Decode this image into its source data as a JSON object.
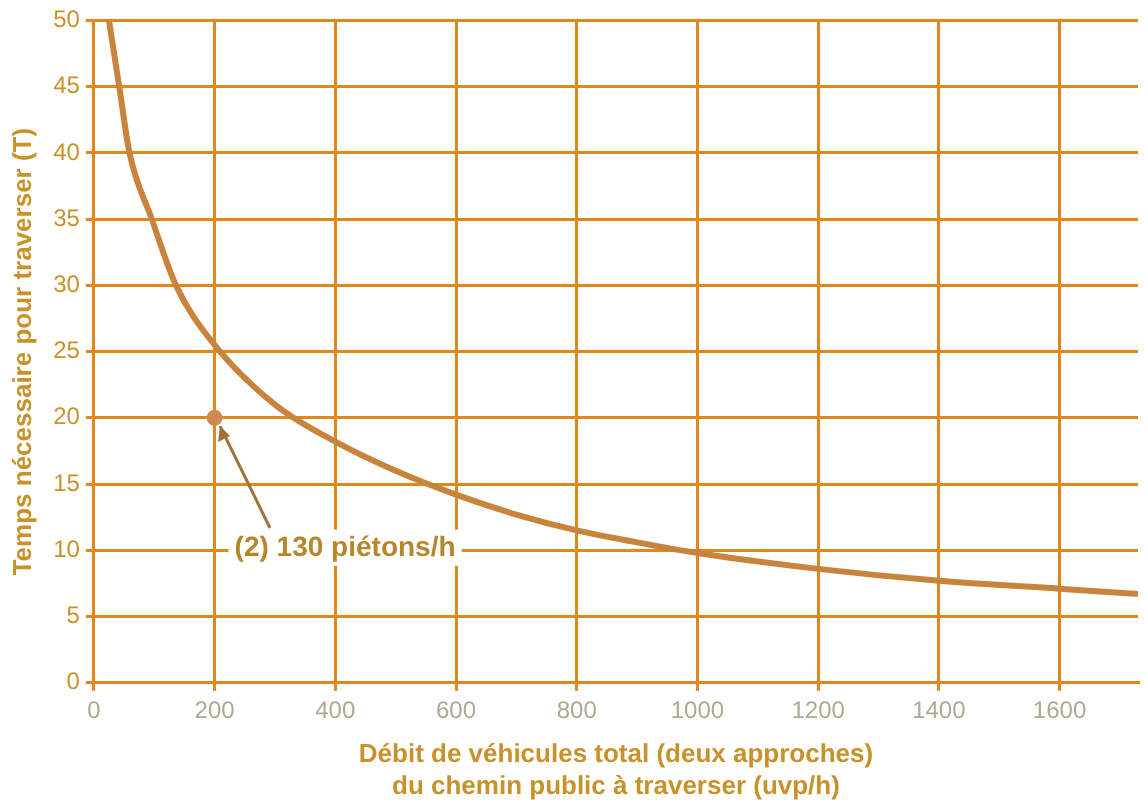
{
  "chart_data": {
    "type": "line",
    "xlabel": "Débit de véhicules total (deux approches)\ndu chemin public à traverser (uvp/h)",
    "ylabel": "Temps nécessaire pour traverser (T)",
    "xlim": [
      0,
      1730
    ],
    "xticks": [
      0,
      200,
      400,
      600,
      800,
      1000,
      1200,
      1400,
      1600
    ],
    "ylim": [
      0,
      50
    ],
    "yticks": [
      0,
      5,
      10,
      15,
      20,
      25,
      30,
      35,
      40,
      45,
      50
    ],
    "grid": true,
    "legend": false,
    "marker": "none",
    "line_style": "solid",
    "series": [
      {
        "color": "#c8843c",
        "x": [
          25,
          42,
          59,
          96,
          136,
          200,
          300,
          400,
          500,
          600,
          700,
          800,
          900,
          1000,
          1200,
          1400,
          1600,
          1730
        ],
        "values": [
          50,
          45,
          40,
          35,
          30,
          25.5,
          21,
          18.2,
          16,
          14.2,
          12.7,
          11.5,
          10.6,
          9.8,
          8.6,
          7.7,
          7.1,
          6.7
        ]
      },
      {
        "type": "scatter",
        "color": "#d08a50",
        "marker": "circle",
        "x": [
          200
        ],
        "values": [
          20
        ]
      }
    ],
    "annotations": [
      {
        "text": "(2) 130 piétons/h",
        "x": 200,
        "y": 20
      }
    ]
  }
}
